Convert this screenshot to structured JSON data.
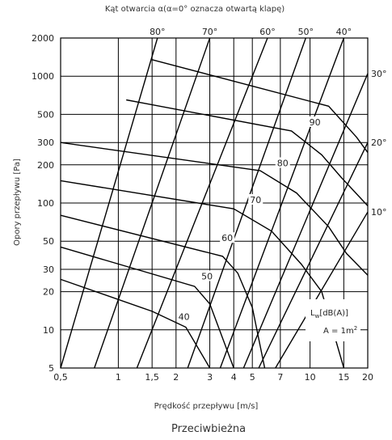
{
  "chart_data": {
    "type": "nomogram",
    "title": "Kąt otwarcia α(α=0° oznacza otwartą klapę)",
    "xlabel": "Prędkość przepływu [m/s]",
    "ylabel": "Opory przepływu [Pa]",
    "caption": "Przeciwbieżna",
    "x_scale": "log",
    "y_scale": "log",
    "xlim": [
      0.5,
      20
    ],
    "ylim": [
      5,
      2000
    ],
    "x_ticks": [
      {
        "v": 0.5,
        "label": "0,5"
      },
      {
        "v": 1,
        "label": "1"
      },
      {
        "v": 1.5,
        "label": "1,5"
      },
      {
        "v": 2,
        "label": "2"
      },
      {
        "v": 3,
        "label": "3"
      },
      {
        "v": 4,
        "label": "4"
      },
      {
        "v": 5,
        "label": "5"
      },
      {
        "v": 7,
        "label": "7"
      },
      {
        "v": 10,
        "label": "10"
      },
      {
        "v": 15,
        "label": "15"
      },
      {
        "v": 20,
        "label": "20"
      }
    ],
    "y_ticks": [
      {
        "v": 5,
        "label": "5"
      },
      {
        "v": 10,
        "label": "10"
      },
      {
        "v": 20,
        "label": "20"
      },
      {
        "v": 30,
        "label": "30"
      },
      {
        "v": 50,
        "label": "50"
      },
      {
        "v": 100,
        "label": "100"
      },
      {
        "v": 200,
        "label": "200"
      },
      {
        "v": 300,
        "label": "300"
      },
      {
        "v": 500,
        "label": "500"
      },
      {
        "v": 1000,
        "label": "1000"
      },
      {
        "v": 2000,
        "label": "2000"
      }
    ],
    "angle_lines": [
      {
        "label": "80°",
        "label_pos": "top",
        "points": [
          [
            0.5,
            5
          ],
          [
            1.6,
            2000
          ]
        ]
      },
      {
        "label": "70°",
        "label_pos": "top",
        "points": [
          [
            0.75,
            5
          ],
          [
            3.0,
            2000
          ]
        ]
      },
      {
        "label": "60°",
        "label_pos": "top",
        "points": [
          [
            1.25,
            5
          ],
          [
            6.0,
            2000
          ]
        ]
      },
      {
        "label": "50°",
        "label_pos": "top",
        "points": [
          [
            2.3,
            5
          ],
          [
            9.5,
            2000
          ]
        ]
      },
      {
        "label": "40°",
        "label_pos": "top",
        "points": [
          [
            3.4,
            5
          ],
          [
            15.0,
            2000
          ]
        ]
      },
      {
        "label": "30°",
        "label_pos": "right",
        "points": [
          [
            4.5,
            5
          ],
          [
            20,
            1050
          ]
        ]
      },
      {
        "label": "20°",
        "label_pos": "right",
        "points": [
          [
            5.4,
            5
          ],
          [
            20,
            300
          ]
        ]
      },
      {
        "label": "10°",
        "label_pos": "right",
        "points": [
          [
            6.6,
            5
          ],
          [
            20,
            85
          ]
        ]
      }
    ],
    "noise_lines": [
      {
        "label": "40",
        "label_at": [
          2.2,
          12
        ],
        "points": [
          [
            0.5,
            25
          ],
          [
            1.5,
            14
          ],
          [
            2.25,
            10.5
          ],
          [
            3.0,
            5
          ]
        ]
      },
      {
        "label": "50",
        "label_at": [
          2.9,
          25
        ],
        "points": [
          [
            0.5,
            45
          ],
          [
            2.5,
            22
          ],
          [
            3.0,
            16
          ],
          [
            4.0,
            5
          ]
        ]
      },
      {
        "label": "60",
        "label_at": [
          3.7,
          50
        ],
        "points": [
          [
            0.5,
            80
          ],
          [
            3.5,
            38
          ],
          [
            4.2,
            28
          ],
          [
            5.0,
            15
          ],
          [
            5.8,
            5
          ]
        ]
      },
      {
        "label": "70",
        "label_at": [
          5.2,
          100
        ],
        "points": [
          [
            0.5,
            150
          ],
          [
            4.0,
            90
          ],
          [
            6.3,
            60
          ],
          [
            9.0,
            33
          ],
          [
            11.5,
            20
          ],
          [
            15.0,
            5
          ]
        ]
      },
      {
        "label": "80",
        "label_at": [
          7.2,
          195
        ],
        "points": [
          [
            0.5,
            300
          ],
          [
            5.5,
            180
          ],
          [
            8.5,
            120
          ],
          [
            12.5,
            65
          ],
          [
            15.5,
            40
          ],
          [
            20,
            27
          ]
        ]
      },
      {
        "label": "90",
        "label_at": [
          10.6,
          410
        ],
        "points": [
          [
            1.1,
            650
          ],
          [
            8.0,
            370
          ],
          [
            11.5,
            240
          ],
          [
            14.5,
            160
          ],
          [
            20,
            95
          ]
        ]
      },
      {
        "label": "",
        "label_at": null,
        "points": [
          [
            1.5,
            1350
          ],
          [
            12.5,
            580
          ],
          [
            17.5,
            330
          ],
          [
            20,
            250
          ]
        ]
      }
    ],
    "note": {
      "lw": "L",
      "lw_sub": "w",
      "lw_unit": "[dB(A)]",
      "area": "A = 1m",
      "area_sup": "2"
    }
  }
}
